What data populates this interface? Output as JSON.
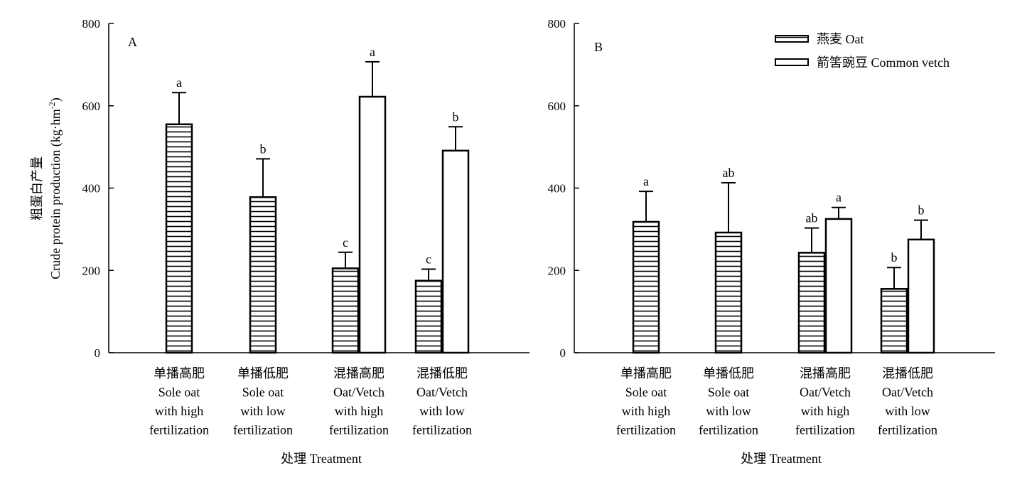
{
  "colors": {
    "axis": "#000000",
    "bar_fill": "#ffffff",
    "hatch": "#000000"
  },
  "chart_data": [
    {
      "type": "bar",
      "panel_label": "A",
      "ylabel_cn": "粗蛋白产量",
      "ylabel_en": "Crude protein production (kg·hm",
      "ylabel_sup": "-2",
      "ylabel_close": ")",
      "xlabel": "处理 Treatment",
      "ylim": [
        0,
        800
      ],
      "yticks": [
        "0",
        "200",
        "400",
        "600",
        "800"
      ],
      "categories": [
        [
          "单播高肥",
          "Sole oat",
          "with high",
          "fertilization"
        ],
        [
          "单播低肥",
          "Sole oat",
          "with low",
          "fertilization"
        ],
        [
          "混播高肥",
          "Oat/Vetch",
          "with high",
          "fertilization"
        ],
        [
          "混播低肥",
          "Oat/Vetch",
          "with low",
          "fertilization"
        ]
      ],
      "series": [
        {
          "name": "燕麦 Oat",
          "pattern": "hatch",
          "values": [
            555,
            378,
            205,
            175
          ],
          "errors": [
            77,
            93,
            39,
            28
          ],
          "letters": [
            "a",
            "b",
            "c",
            "c"
          ]
        },
        {
          "name": "箭筈豌豆 Common vetch",
          "pattern": "open",
          "values": [
            null,
            null,
            622,
            491
          ],
          "errors": [
            null,
            null,
            85,
            58
          ],
          "letters": [
            "",
            "",
            "a",
            "b"
          ]
        }
      ],
      "legend": "none",
      "grid": false
    },
    {
      "type": "bar",
      "panel_label": "B",
      "xlabel": "处理 Treatment",
      "ylim": [
        0,
        800
      ],
      "yticks": [
        "0",
        "200",
        "400",
        "600",
        "800"
      ],
      "categories": [
        [
          "单播高肥",
          "Sole oat",
          "with high",
          "fertilization"
        ],
        [
          "单播低肥",
          "Sole oat",
          "with low",
          "fertilization"
        ],
        [
          "混播高肥",
          "Oat/Vetch",
          "with high",
          "fertilization"
        ],
        [
          "混播低肥",
          "Oat/Vetch",
          "with low",
          "fertilization"
        ]
      ],
      "series": [
        {
          "name": "燕麦 Oat",
          "pattern": "hatch",
          "values": [
            318,
            292,
            243,
            155
          ],
          "errors": [
            74,
            121,
            60,
            52
          ],
          "letters": [
            "a",
            "ab",
            "ab",
            "b"
          ]
        },
        {
          "name": "箭筈豌豆 Common vetch",
          "pattern": "open",
          "values": [
            null,
            null,
            325,
            275
          ],
          "errors": [
            null,
            null,
            28,
            47
          ],
          "letters": [
            "",
            "",
            "a",
            "b"
          ]
        }
      ],
      "legend": "top-right",
      "legend_items": [
        "燕麦 Oat",
        "箭筈豌豆 Common vetch"
      ],
      "grid": false
    }
  ]
}
